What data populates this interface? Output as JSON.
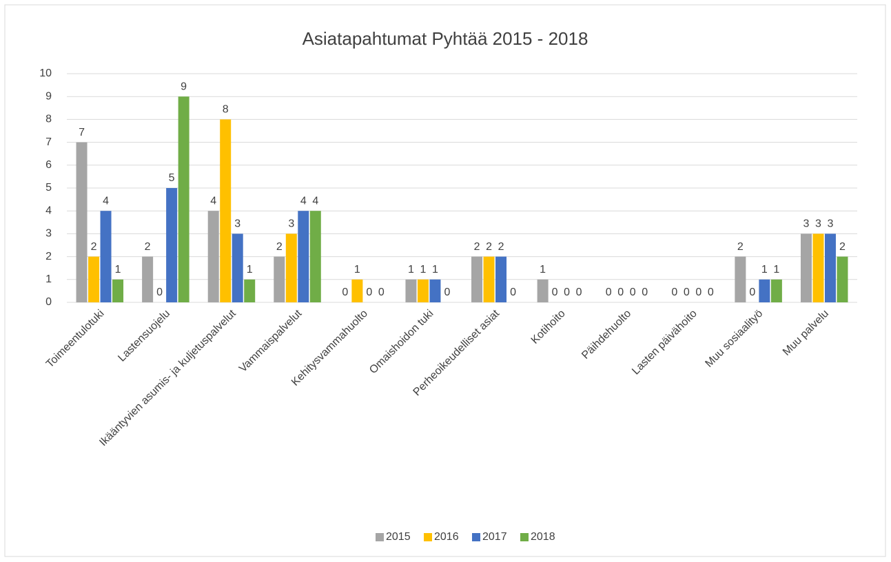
{
  "chart_data": {
    "type": "bar",
    "title": "Asiatapahtumat Pyhtää 2015 - 2018",
    "categories": [
      "Toimeentulotuki",
      "Lastensuojelu",
      "Ikääntyvien asumis- ja kuljetuspalvelut",
      "Vammaispalvelut",
      "Kehitysvammahuolto",
      "Omaishoidon tuki",
      "Perheoikeudelliset asiat",
      "Kotihoito",
      "Päihdehuolto",
      "Lasten päivähoito",
      "Muu sosiaalityö",
      "Muu palvelu"
    ],
    "series": [
      {
        "name": "2015",
        "color": "#a5a5a5",
        "values": [
          7,
          2,
          4,
          2,
          0,
          1,
          2,
          1,
          0,
          0,
          2,
          3
        ]
      },
      {
        "name": "2016",
        "color": "#ffc000",
        "values": [
          2,
          0,
          8,
          3,
          1,
          1,
          2,
          0,
          0,
          0,
          0,
          3
        ]
      },
      {
        "name": "2017",
        "color": "#4472c4",
        "values": [
          4,
          5,
          3,
          4,
          0,
          1,
          2,
          0,
          0,
          0,
          1,
          3
        ]
      },
      {
        "name": "2018",
        "color": "#70ad47",
        "values": [
          1,
          9,
          1,
          4,
          0,
          0,
          0,
          0,
          0,
          0,
          1,
          2
        ]
      }
    ],
    "ylim": [
      0,
      10
    ],
    "yticks": [
      0,
      1,
      2,
      3,
      4,
      5,
      6,
      7,
      8,
      9,
      10
    ],
    "grid": true,
    "legend": "bottom"
  }
}
